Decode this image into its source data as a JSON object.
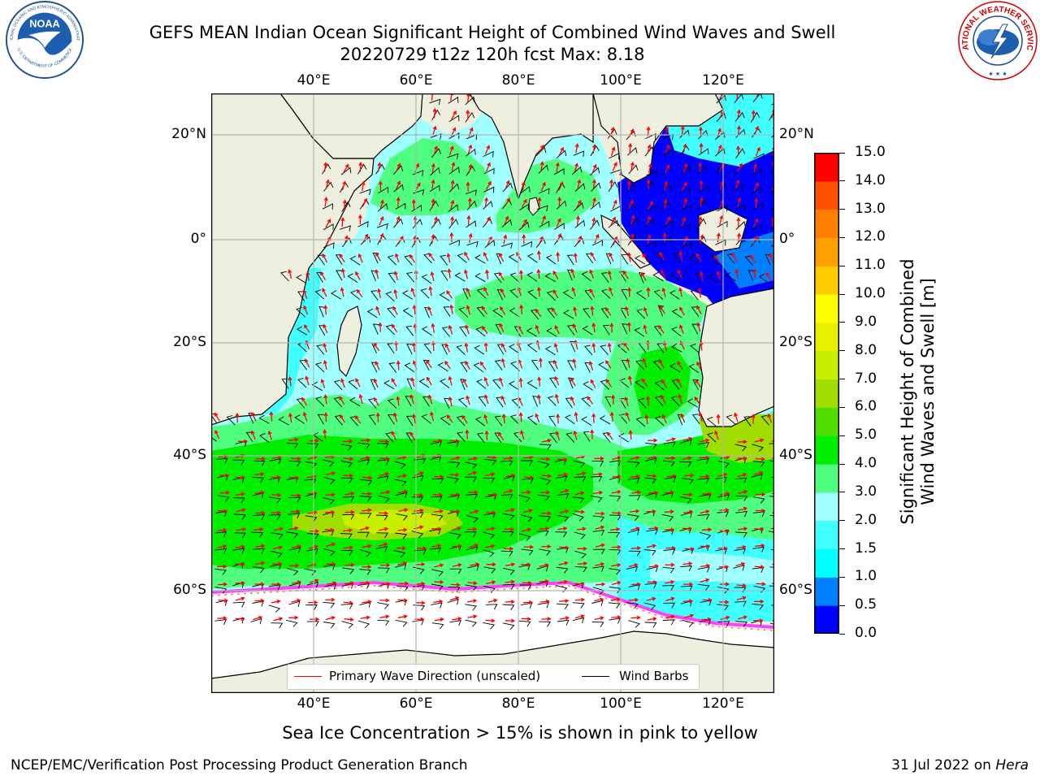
{
  "header": {
    "title_line1": "GEFS MEAN Indian Ocean Significant Height of Combined Wind Waves and Swell",
    "title_line2": "20220729 t12z 120h fcst   Max: 8.18"
  },
  "map": {
    "lon_ticks": [
      "40°E",
      "60°E",
      "80°E",
      "100°E",
      "120°E"
    ],
    "lat_ticks": [
      "20°N",
      "0°",
      "20°S",
      "40°S",
      "60°S"
    ],
    "lon_range": [
      20,
      129
    ],
    "lat_range": [
      -79,
      28
    ],
    "lon_values": [
      40,
      60,
      80,
      100,
      120
    ],
    "lat_values": [
      20,
      0,
      -20,
      -40,
      -60
    ],
    "legend": {
      "wave_label": "Primary Wave Direction (unscaled)",
      "wave_color": "#ff0000",
      "wind_label": "Wind Barbs",
      "wind_color": "#000000"
    },
    "colors": {
      "land": "#efefdf",
      "ice_region": "#ffffff",
      "grid": "#b4b4b4"
    }
  },
  "colorbar": {
    "label": "Significant Height of Combined Wind Waves and Swell [m]",
    "label_line1": "Significant Height of Combined",
    "label_line2": "Wind Waves and Swell [m]",
    "levels": [
      "0.0",
      "0.5",
      "1.0",
      "1.5",
      "2.0",
      "3.0",
      "4.0",
      "5.0",
      "6.0",
      "7.0",
      "8.0",
      "9.0",
      "10.0",
      "11.0",
      "12.0",
      "13.0",
      "14.0",
      "15.0"
    ],
    "colors": [
      "#0000ff",
      "#0080ff",
      "#00ffff",
      "#40ffff",
      "#a0ffff",
      "#50ff80",
      "#00ee00",
      "#50dd00",
      "#a0dd00",
      "#c8ee00",
      "#e8f000",
      "#ffff00",
      "#ffcc00",
      "#ffa000",
      "#ff8000",
      "#ff5000",
      "#ff0000"
    ]
  },
  "footer": {
    "note": "Sea Ice Concentration > 15% is shown in pink to yellow",
    "left": "NCEP/EMC/Verification Post Processing Product Generation Branch",
    "date": "31 Jul 2022 on ",
    "machine": "Hera"
  },
  "logos": {
    "noaa_text": "NOAA",
    "noaa_ring_top": "NATIONAL OCEANIC AND ATMOSPHERIC ADMINISTRATION",
    "noaa_ring_bottom": "U.S. DEPARTMENT OF COMMERCE",
    "nws_ring": "NATIONAL WEATHER SERVICE"
  }
}
